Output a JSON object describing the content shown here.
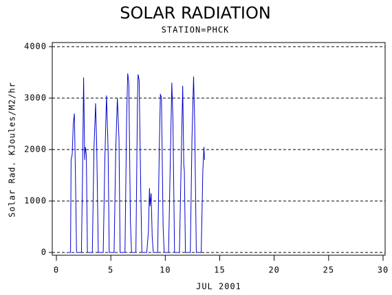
{
  "chart_data": {
    "type": "line",
    "title": "SOLAR RADIATION",
    "subtitle": "STATION=PHCK",
    "x_label": "JUL 2001",
    "y_label": "Solar Rad. KJoules/M2/hr",
    "xlim": [
      0,
      30
    ],
    "xticks": [
      0,
      5,
      10,
      15,
      20,
      25,
      30
    ],
    "ylim": [
      0,
      4000
    ],
    "yticks": [
      0,
      1000,
      2000,
      3000,
      4000
    ],
    "grid": true,
    "series": [
      {
        "name": "Solar Rad.",
        "color": "#0000cc",
        "x": [
          1.0,
          1.3,
          1.35,
          1.45,
          1.55,
          1.65,
          1.75,
          1.85,
          2.3,
          2.4,
          2.5,
          2.6,
          2.65,
          2.75,
          2.85,
          3.3,
          3.45,
          3.6,
          3.7,
          3.85,
          4.3,
          4.45,
          4.6,
          4.75,
          4.85,
          5.3,
          5.45,
          5.6,
          5.75,
          5.85,
          6.3,
          6.45,
          6.55,
          6.65,
          6.8,
          6.9,
          7.3,
          7.45,
          7.5,
          7.6,
          7.75,
          7.85,
          8.3,
          8.45,
          8.55,
          8.6,
          8.7,
          8.8,
          8.9,
          9.3,
          9.45,
          9.55,
          9.65,
          9.8,
          9.9,
          10.3,
          10.5,
          10.6,
          10.7,
          10.85,
          11.3,
          11.5,
          11.6,
          11.7,
          11.75,
          11.85,
          12.3,
          12.45,
          12.6,
          12.7,
          12.85,
          13.3,
          13.45,
          13.55,
          13.6
        ],
        "values": [
          0,
          0,
          1800,
          1900,
          2500,
          2700,
          1500,
          0,
          0,
          1500,
          3400,
          1800,
          2050,
          1900,
          0,
          0,
          2000,
          2900,
          2100,
          0,
          0,
          1800,
          3050,
          2000,
          0,
          0,
          2000,
          3000,
          2200,
          0,
          0,
          2600,
          3480,
          3300,
          600,
          0,
          0,
          3000,
          3460,
          3350,
          1200,
          0,
          0,
          400,
          1250,
          900,
          1150,
          300,
          0,
          0,
          2000,
          3080,
          3000,
          500,
          0,
          0,
          2200,
          3300,
          2600,
          0,
          0,
          2200,
          3240,
          1700,
          1600,
          0,
          0,
          2200,
          3420,
          2500,
          0,
          0,
          1600,
          2050,
          1800
        ]
      }
    ]
  }
}
